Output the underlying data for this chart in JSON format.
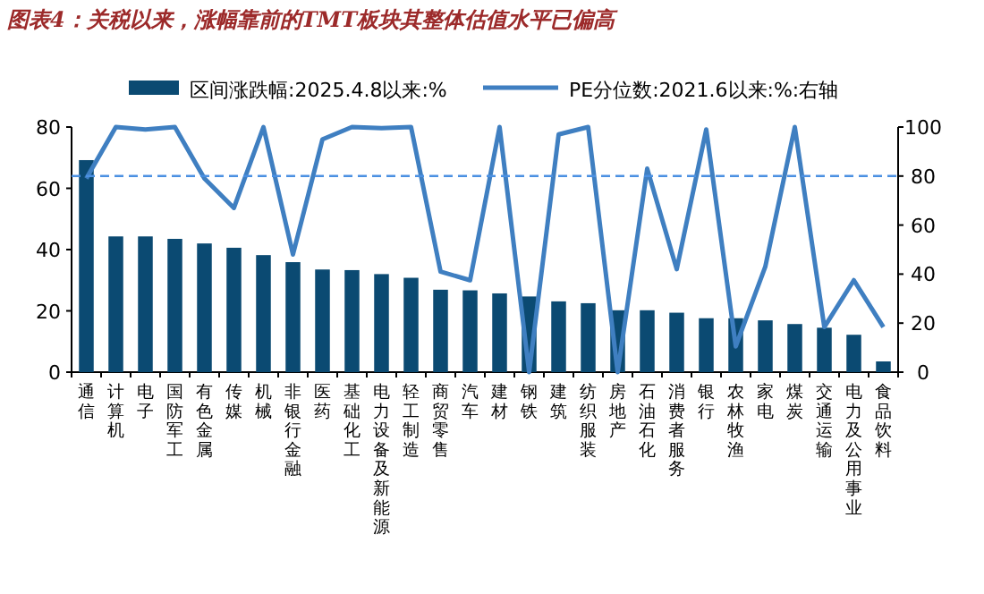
{
  "chart_data": {
    "type": "bar",
    "title": "图表4：关税以来，涨幅靠前的TMT板块其整体估值水平已偏高",
    "categories": [
      "通信",
      "计算机",
      "电子",
      "国防军工",
      "有色金属",
      "传媒",
      "机械",
      "非银行金融",
      "医药",
      "基础化工",
      "电力设备及新能源",
      "轻工制造",
      "商贸零售",
      "汽车",
      "建材",
      "钢铁",
      "建筑",
      "纺织服装",
      "房地产",
      "石油石化",
      "消费者服务",
      "银行",
      "农林牧渔",
      "家电",
      "煤炭",
      "交通运输",
      "电力及公用事业",
      "食品饮料"
    ],
    "series": [
      {
        "name": "区间涨跌幅:2025.4.8以来:%",
        "color": "#0b4a72",
        "values": [
          69.2,
          44.3,
          44.3,
          43.5,
          42,
          40.6,
          38.2,
          35.9,
          33.5,
          33.3,
          32,
          30.8,
          26.9,
          26.7,
          25.7,
          24.7,
          23.1,
          22.5,
          20.2,
          20.2,
          19.4,
          17.6,
          17.6,
          16.9,
          15.7,
          14.5,
          12.2,
          3.5
        ]
      },
      {
        "name": "PE分位数:2021.6以来:%:右轴",
        "type": "line",
        "axis": "y2",
        "color": "#3f7fc1",
        "values": [
          79,
          100,
          99,
          100,
          79,
          67,
          100,
          48,
          95,
          100,
          99.5,
          100,
          41,
          37.5,
          100,
          0,
          97,
          100,
          0,
          83,
          42,
          99,
          10.5,
          43,
          100,
          18.4,
          37.5,
          18.4
        ]
      }
    ],
    "ylim": [
      0,
      80
    ],
    "yticks": [
      0,
      20,
      40,
      60,
      80
    ],
    "y2lim": [
      0,
      100
    ],
    "y2ticks": [
      0,
      20,
      40,
      60,
      80,
      100
    ],
    "ref_lines": [
      {
        "axis": "y2",
        "value": 80,
        "color": "#4a90e2",
        "line_style": "dashed"
      }
    ],
    "legend": "top",
    "grid": false
  }
}
